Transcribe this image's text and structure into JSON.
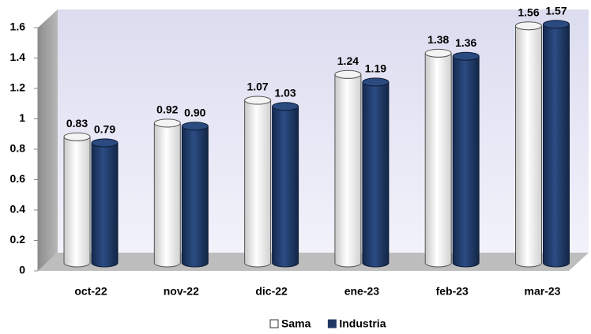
{
  "chart_data": {
    "type": "bar",
    "categories": [
      "oct-22",
      "nov-22",
      "dic-22",
      "ene-23",
      "feb-23",
      "mar-23"
    ],
    "series": [
      {
        "name": "Sama",
        "color": "#ffffff",
        "values": [
          0.83,
          0.92,
          1.07,
          1.24,
          1.38,
          1.56
        ],
        "value_labels": [
          "0.83",
          "0.92",
          "1.07",
          "1.24",
          "1.38",
          "1.56"
        ]
      },
      {
        "name": "Industria",
        "color": "#1f3864",
        "values": [
          0.79,
          0.9,
          1.03,
          1.19,
          1.36,
          1.57
        ],
        "value_labels": [
          "0.79",
          "0.90",
          "1.03",
          "1.19",
          "1.36",
          "1.57"
        ]
      }
    ],
    "ylim": [
      0,
      1.6
    ],
    "yticks": [
      0,
      0.2,
      0.4,
      0.6,
      0.8,
      1,
      1.2,
      1.4,
      1.6
    ],
    "legend": "bottom"
  }
}
